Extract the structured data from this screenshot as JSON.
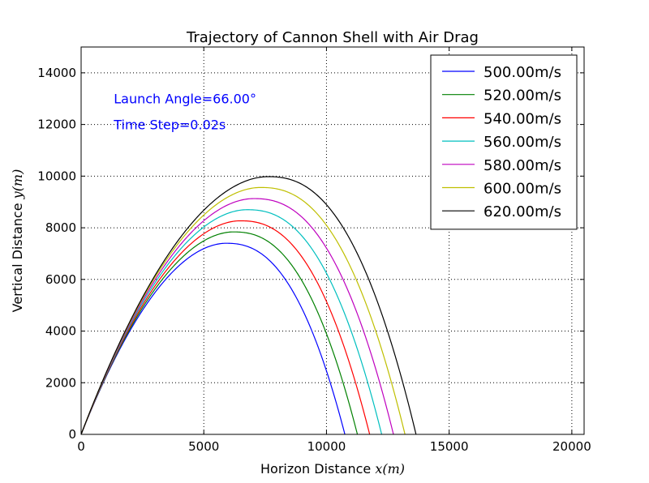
{
  "chart_data": {
    "type": "line",
    "title": "Trajectory of Cannon Shell with Air Drag",
    "xlabel": {
      "text": "Horizon Distance ",
      "math": "x(m)"
    },
    "ylabel": {
      "text": "Vertical Distance ",
      "math": "y(m)"
    },
    "xlim": [
      0,
      20500
    ],
    "ylim": [
      0,
      15000
    ],
    "xticks": [
      0,
      5000,
      10000,
      15000,
      20000
    ],
    "yticks": [
      0,
      2000,
      4000,
      6000,
      8000,
      10000,
      12000,
      14000
    ],
    "grid": true,
    "legend_position": "top-right",
    "annotations": [
      {
        "text": "Launch Angle=66.00°",
        "x": 1330,
        "y": 13000,
        "color": "#0000ff"
      },
      {
        "text": "Time Step=0.02s",
        "x": 1330,
        "y": 12000,
        "color": "#0000ff"
      }
    ],
    "series": [
      {
        "name": "500.00m/s",
        "color": "#0000ff",
        "range": 10750,
        "apex": [
          5900,
          7400
        ]
      },
      {
        "name": "520.00m/s",
        "color": "#008000",
        "range": 11260,
        "apex": [
          6200,
          7840
        ]
      },
      {
        "name": "540.00m/s",
        "color": "#ff0000",
        "range": 11760,
        "apex": [
          6480,
          8270
        ]
      },
      {
        "name": "560.00m/s",
        "color": "#00bfbf",
        "range": 12250,
        "apex": [
          6750,
          8700
        ]
      },
      {
        "name": "580.00m/s",
        "color": "#bf00bf",
        "range": 12730,
        "apex": [
          7020,
          9130
        ]
      },
      {
        "name": "600.00m/s",
        "color": "#bfbf00",
        "range": 13200,
        "apex": [
          7300,
          9560
        ]
      },
      {
        "name": "620.00m/s",
        "color": "#000000",
        "range": 13650,
        "apex": [
          7600,
          9980
        ]
      }
    ]
  }
}
